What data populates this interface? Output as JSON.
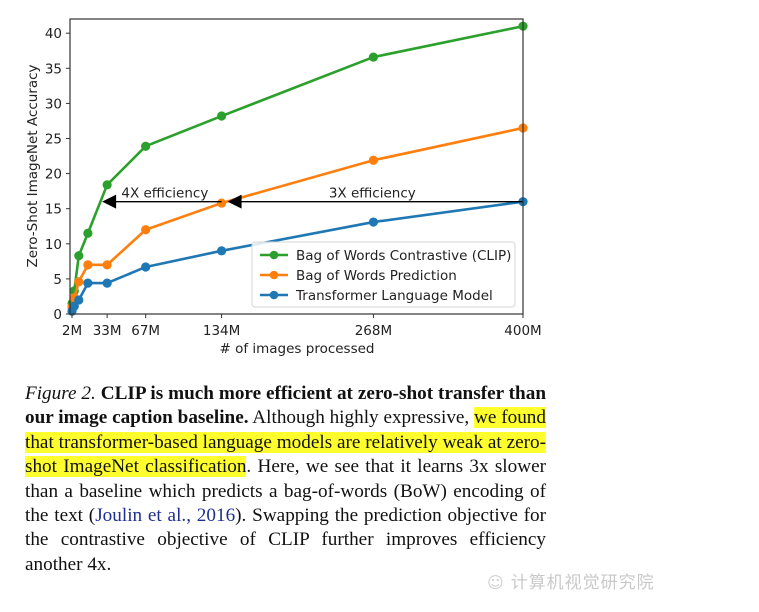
{
  "chart_data": {
    "type": "line",
    "title": "",
    "xlabel": "# of images processed",
    "ylabel": "Zero-Shot ImageNet Accuracy",
    "x_ticks": [
      "2M",
      "33M",
      "67M",
      "134M",
      "268M",
      "400M"
    ],
    "x_tick_values": [
      2,
      33,
      67,
      134,
      268,
      400
    ],
    "y_ticks": [
      0,
      5,
      10,
      15,
      20,
      25,
      30,
      35,
      40
    ],
    "xlim": [
      0,
      400
    ],
    "ylim": [
      0,
      42
    ],
    "grid": false,
    "legend_position": "lower right",
    "x": [
      2,
      4,
      8,
      16,
      33,
      67,
      134,
      268,
      400
    ],
    "series": [
      {
        "name": "Bag of Words Contrastive (CLIP)",
        "color": "#2ca02c",
        "values": [
          1.5,
          3.3,
          8.3,
          11.5,
          18.4,
          23.9,
          28.2,
          36.6,
          41.0
        ]
      },
      {
        "name": "Bag of Words Prediction",
        "color": "#ff7f0e",
        "values": [
          1.0,
          2.3,
          4.6,
          7.0,
          7.0,
          12.0,
          15.8,
          21.9,
          26.5
        ]
      },
      {
        "name": "Transformer Language Model",
        "color": "#1f77b4",
        "values": [
          0.4,
          1.1,
          2.0,
          4.4,
          4.4,
          6.7,
          9.0,
          13.1,
          16.0
        ]
      }
    ],
    "annotations": [
      {
        "text": "4X efficiency",
        "arrow_from_x": 134,
        "arrow_to_x": 33,
        "y": 16
      },
      {
        "text": "3X efficiency",
        "arrow_from_x": 400,
        "arrow_to_x": 134,
        "y": 16
      }
    ]
  },
  "caption": {
    "figure_label": "Figure 2.",
    "bold_title": "CLIP is much more efficient at zero-shot transfer than our image caption baseline.",
    "text_before_highlight": "Although highly expressive,",
    "highlight_text": "we found that transformer-based language models are relatively weak at zero-shot ImageNet classification",
    "text_after_highlight": ". Here, we see that it learns 3x slower than a baseline which predicts a bag-of-words (BoW) encoding of the text (",
    "citation": "Joulin et al., 2016",
    "text_end": "). Swapping the prediction objective for the contrastive objective of CLIP further improves efficiency another 4x."
  },
  "watermark": {
    "icon": "wechat-icon",
    "icon_glyph": "☺",
    "text": "计算机视觉研究院"
  }
}
